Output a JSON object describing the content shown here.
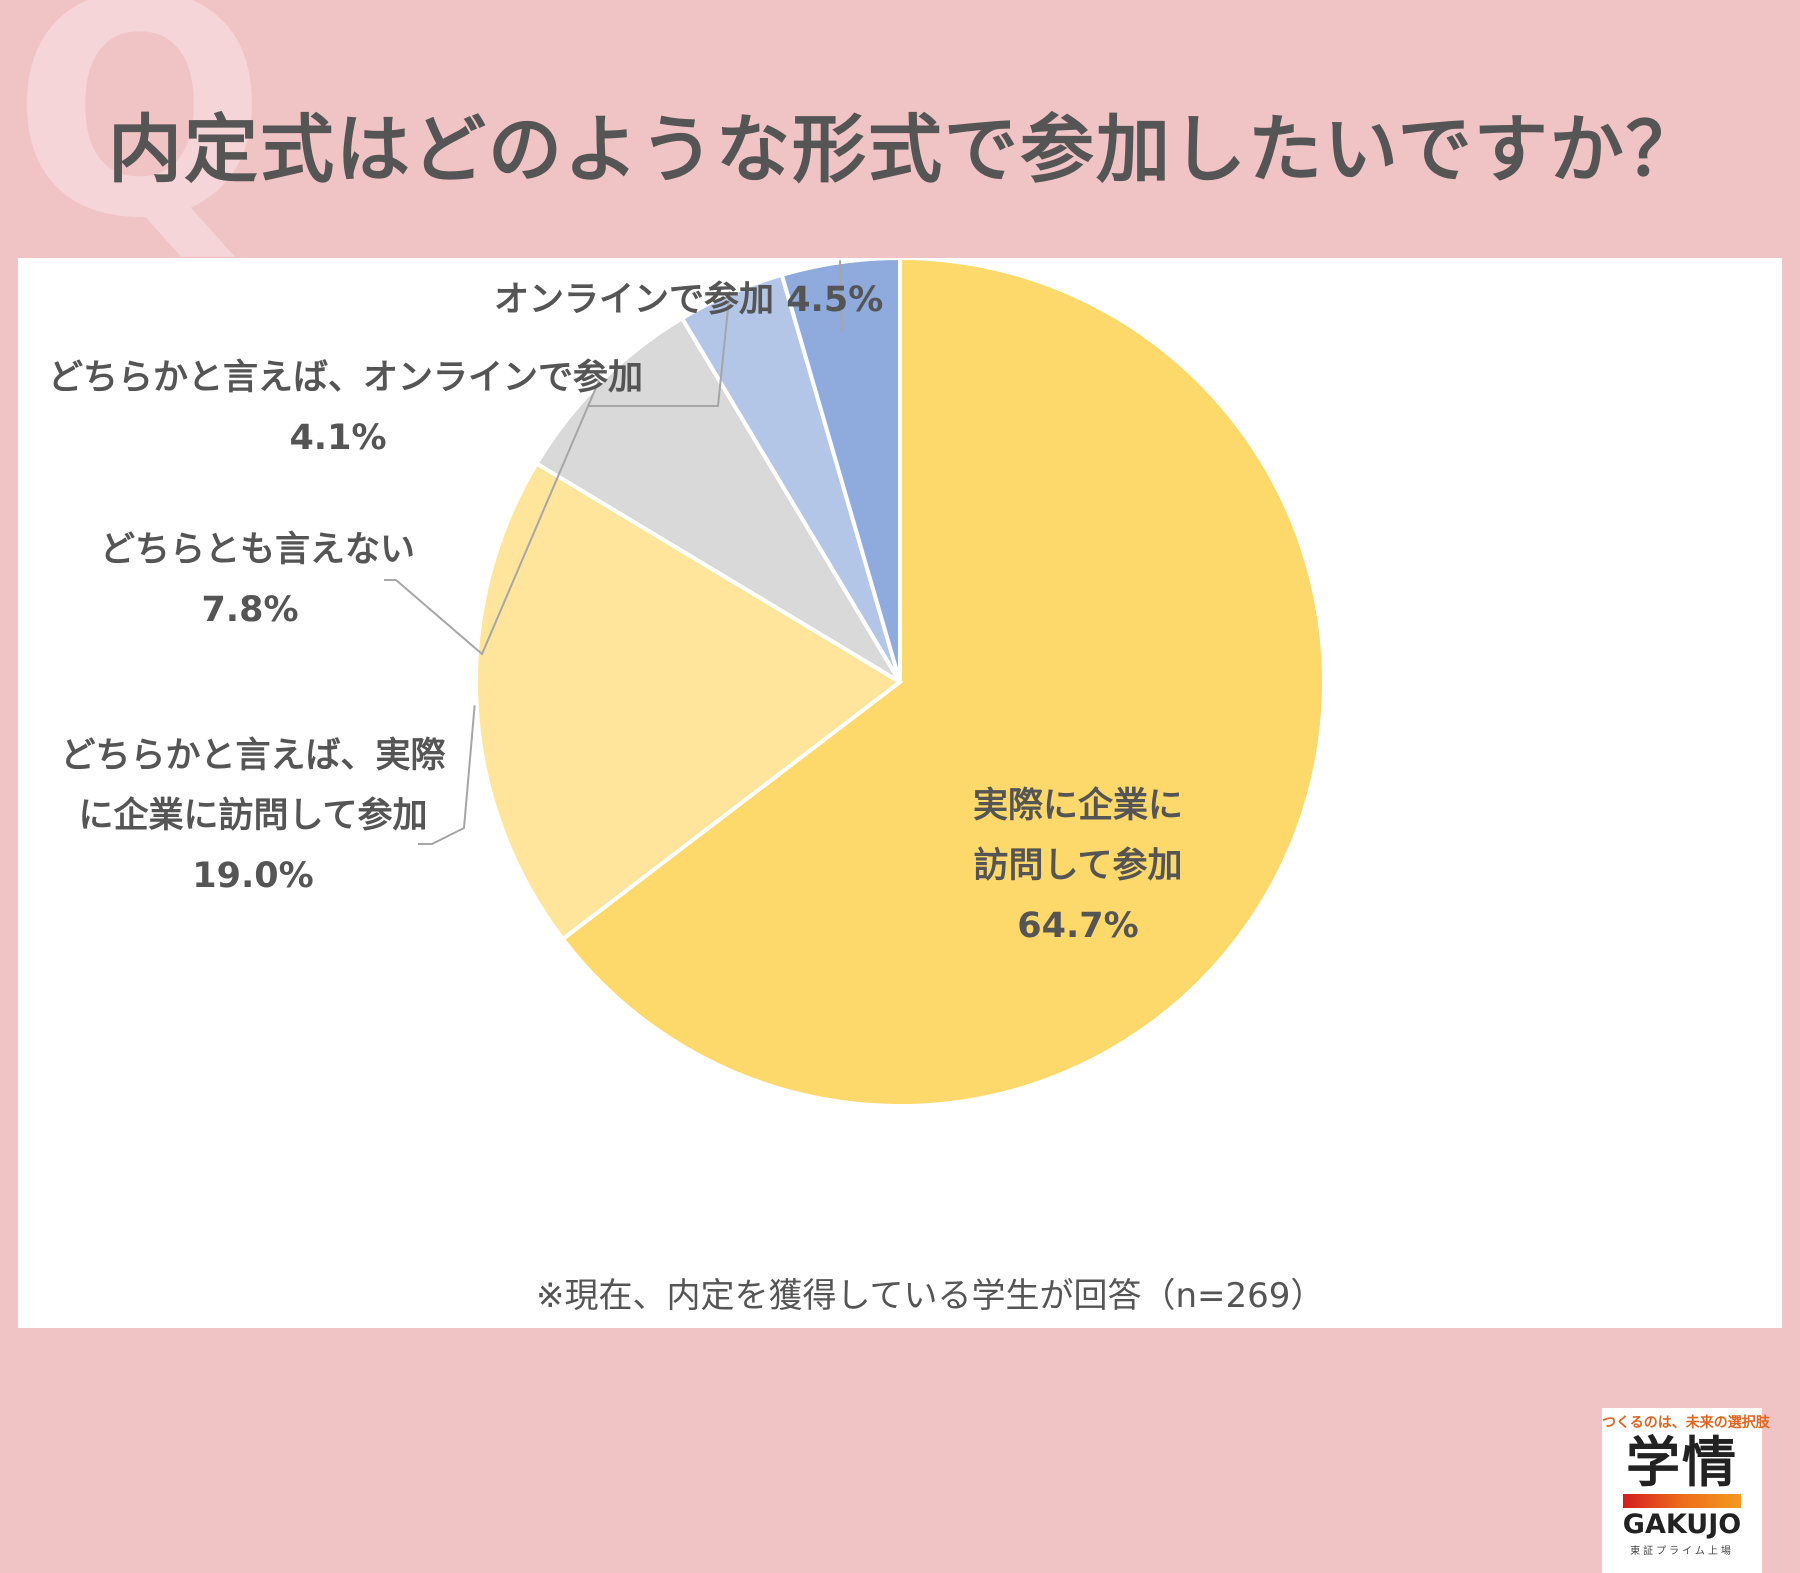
{
  "title": "内定式はどのような形式で参加したいですか？",
  "chart_data": {
    "type": "pie",
    "title": "内定式はどのような形式で参加したいですか？",
    "slices": [
      {
        "label": "実際に企業に訪問して参加",
        "label_lines": [
          "実際に企業に",
          "訪問して参加"
        ],
        "pct_text": "64.7%",
        "value": 64.7,
        "color": "#fdd86b"
      },
      {
        "label": "どちらかと言えば、実際に企業に訪問して参加",
        "label_lines": [
          "どちらかと言えば、実際",
          "に企業に訪問して参加"
        ],
        "pct_text": "19.0%",
        "value": 19.0,
        "color": "#fee59b"
      },
      {
        "label": "どちらとも言えない",
        "label_lines": [
          "どちらとも言えない"
        ],
        "pct_text": "7.8%",
        "value": 7.8,
        "color": "#d9d9d9"
      },
      {
        "label": "どちらかと言えば、オンラインで参加",
        "label_lines": [
          "どちらかと言えば、オンラインで参加"
        ],
        "pct_text": "4.1%",
        "value": 4.1,
        "color": "#b4c6e7"
      },
      {
        "label": "オンラインで参加",
        "label_lines": [
          "オンラインで参加"
        ],
        "pct_text": "4.5%",
        "value": 4.5,
        "color": "#8faadc"
      }
    ]
  },
  "note": "※現在、内定を獲得している学生が回答（n=269）",
  "logo": {
    "tagline": "つくるのは、未来の選択肢",
    "kanji": "学情",
    "brand": "GAKUJO",
    "sub": "東証プライム上場"
  }
}
